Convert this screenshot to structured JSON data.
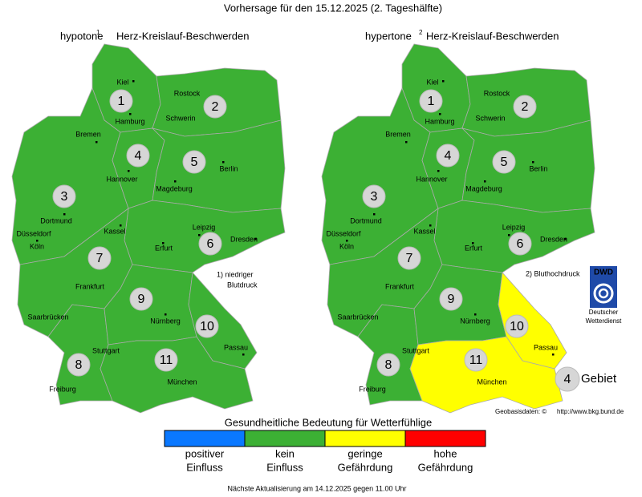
{
  "title": "Vorhersage für den 15.12.2025 (2. Tageshälfte)",
  "maps": [
    {
      "name": "hypotone",
      "superscript": "1",
      "subtitle": "Herz-Kreislauf-Beschwerden",
      "note": [
        "1) niedriger",
        "Blutdruck"
      ],
      "regions": [
        {
          "label": "1",
          "color": "#3cb034"
        },
        {
          "label": "2",
          "color": "#3cb034"
        },
        {
          "label": "3",
          "color": "#3cb034"
        },
        {
          "label": "4",
          "color": "#3cb034"
        },
        {
          "label": "5",
          "color": "#3cb034"
        },
        {
          "label": "6",
          "color": "#3cb034"
        },
        {
          "label": "7",
          "color": "#3cb034"
        },
        {
          "label": "8",
          "color": "#3cb034"
        },
        {
          "label": "9",
          "color": "#3cb034"
        },
        {
          "label": "10",
          "color": "#3cb034"
        },
        {
          "label": "11",
          "color": "#3cb034"
        }
      ]
    },
    {
      "name": "hypertone",
      "superscript": "2",
      "subtitle": "Herz-Kreislauf-Beschwerden",
      "note": [
        "2) Bluthochdruck"
      ],
      "regions": [
        {
          "label": "1",
          "color": "#3cb034"
        },
        {
          "label": "2",
          "color": "#3cb034"
        },
        {
          "label": "3",
          "color": "#3cb034"
        },
        {
          "label": "4",
          "color": "#3cb034"
        },
        {
          "label": "5",
          "color": "#3cb034"
        },
        {
          "label": "6",
          "color": "#3cb034"
        },
        {
          "label": "7",
          "color": "#3cb034"
        },
        {
          "label": "8",
          "color": "#3cb034"
        },
        {
          "label": "9",
          "color": "#3cb034"
        },
        {
          "label": "10",
          "color": "#ffff00"
        },
        {
          "label": "11",
          "color": "#ffff00"
        }
      ]
    }
  ],
  "cities": [
    "Kiel",
    "Rostock",
    "Hamburg",
    "Schwerin",
    "Bremen",
    "Hannover",
    "Berlin",
    "Magdeburg",
    "Dortmund",
    "Düsseldorf",
    "Köln",
    "Kassel",
    "Leipzig",
    "Dresden",
    "Erfurt",
    "Frankfurt",
    "Saarbrücken",
    "Nürnberg",
    "Passau",
    "Stuttgart",
    "Freiburg",
    "München"
  ],
  "legend": {
    "title": "Gesundheitliche Bedeutung für Wetterfühlige",
    "items": [
      {
        "color": "#0a78ff",
        "label": [
          "positiver",
          "Einfluss"
        ]
      },
      {
        "color": "#3cb034",
        "label": [
          "kein",
          "Einfluss"
        ]
      },
      {
        "color": "#ffff00",
        "label": [
          "geringe",
          "Gefährdung"
        ]
      },
      {
        "color": "#ff0000",
        "label": [
          "hohe",
          "Gefährdung"
        ]
      }
    ]
  },
  "logo": {
    "text": "DWD",
    "lines": [
      "Deutscher",
      "Wetterdienst"
    ]
  },
  "key": {
    "label": "4",
    "text": "Gebiet"
  },
  "source": {
    "text": "Geobasisdaten: ©",
    "link": "http://www.bkg.bund.de"
  },
  "footer": "Nächste Aktualisierung am 14.12.2025 gegen 11.00 Uhr"
}
